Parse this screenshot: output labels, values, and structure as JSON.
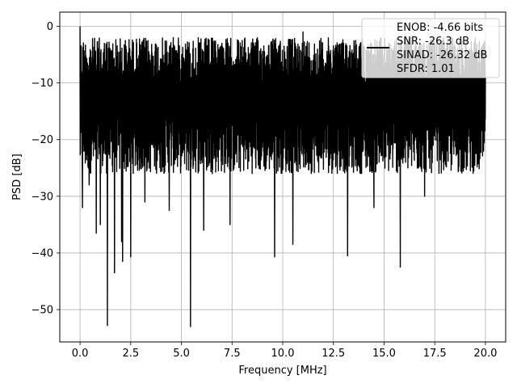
{
  "chart_data": {
    "type": "line",
    "title": "",
    "xlabel": "Frequency [MHz]",
    "ylabel": "PSD [dB]",
    "xlim": [
      -1.0,
      21.0
    ],
    "ylim": [
      -55.7,
      2.5
    ],
    "x_ticks": [
      0.0,
      2.5,
      5.0,
      7.5,
      10.0,
      12.5,
      15.0,
      17.5,
      20.0
    ],
    "x_tick_labels": [
      "0.0",
      "2.5",
      "5.0",
      "7.5",
      "10.0",
      "12.5",
      "15.0",
      "17.5",
      "20.0"
    ],
    "y_ticks": [
      0,
      -10,
      -20,
      -30,
      -40,
      -50
    ],
    "y_tick_labels": [
      "0",
      "−10",
      "−20",
      "−30",
      "−40",
      "−50"
    ],
    "grid": true,
    "legend_position": "top-right",
    "series": [
      {
        "color": "#000000",
        "x_range": [
          0.0,
          20.0
        ],
        "typical_band": [
          -26.0,
          -2.0
        ],
        "start_peak": [
          0.0,
          0.0
        ],
        "deep_minima": [
          [
            0.12,
            -32.0
          ],
          [
            0.45,
            -28.0
          ],
          [
            0.8,
            -36.5
          ],
          [
            1.0,
            -35.0
          ],
          [
            1.35,
            -52.8
          ],
          [
            1.7,
            -43.5
          ],
          [
            2.05,
            -38.0
          ],
          [
            2.1,
            -41.5
          ],
          [
            2.5,
            -40.7
          ],
          [
            3.2,
            -31.0
          ],
          [
            4.4,
            -32.5
          ],
          [
            5.45,
            -53.0
          ],
          [
            6.1,
            -36.0
          ],
          [
            7.4,
            -35.0
          ],
          [
            9.6,
            -40.7
          ],
          [
            10.5,
            -38.5
          ],
          [
            13.2,
            -40.5
          ],
          [
            14.5,
            -32.0
          ],
          [
            15.8,
            -42.5
          ],
          [
            17.0,
            -30.0
          ]
        ],
        "high_peaks": [
          [
            4.6,
            -2.0
          ],
          [
            7.0,
            -3.0
          ],
          [
            11.0,
            -1.0
          ],
          [
            13.0,
            -3.0
          ],
          [
            15.5,
            -3.5
          ],
          [
            18.0,
            -4.0
          ]
        ]
      }
    ],
    "legend": {
      "line_color": "#000000",
      "lines": [
        "ENOB: -4.66 bits",
        "SNR: -26.3 dB",
        "SINAD: -26.32 dB",
        "SFDR: 1.01"
      ]
    }
  }
}
